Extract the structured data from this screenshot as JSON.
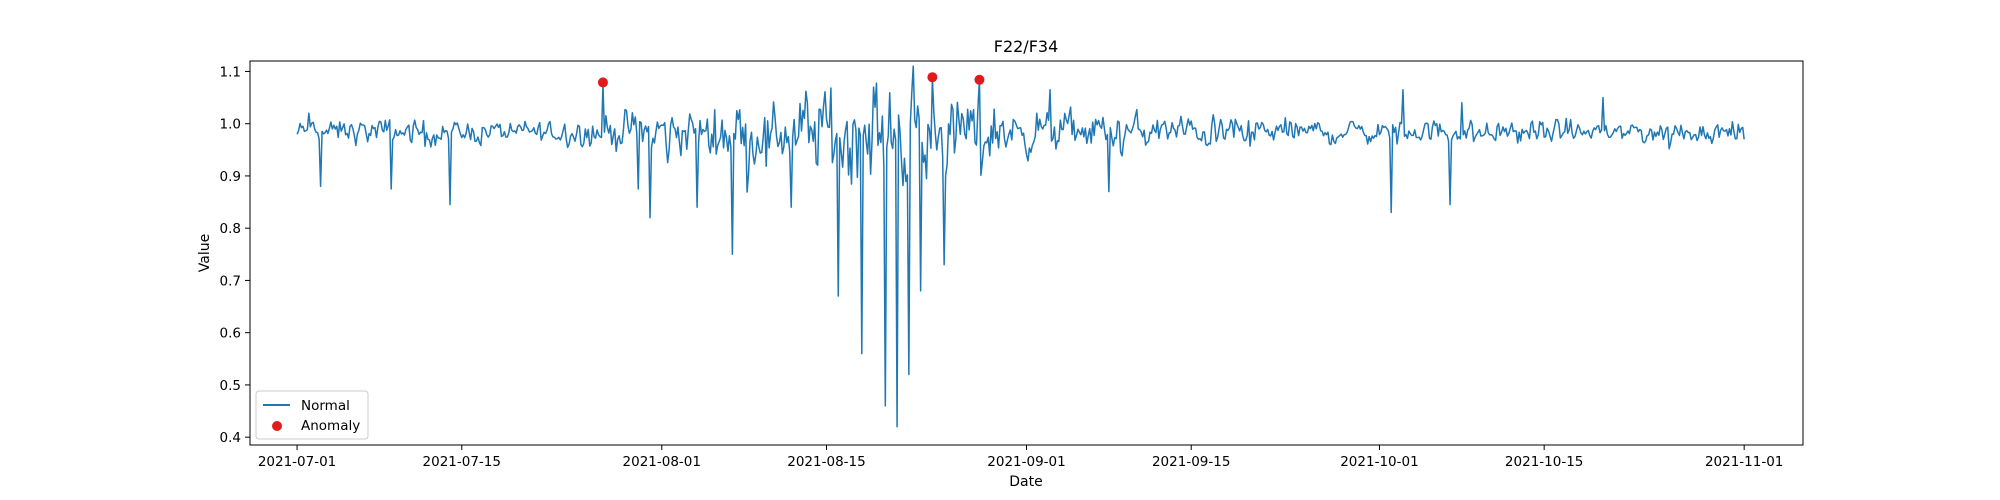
{
  "chart_data": {
    "type": "line",
    "title": "F22/F34",
    "xlabel": "Date",
    "ylabel": "Value",
    "x_range": [
      "2021-06-27",
      "2021-11-06"
    ],
    "ylim": [
      0.385,
      1.12
    ],
    "x_ticks": [
      "2021-07-01",
      "2021-07-15",
      "2021-08-01",
      "2021-08-15",
      "2021-09-01",
      "2021-09-15",
      "2021-10-01",
      "2021-10-15",
      "2021-11-01"
    ],
    "y_ticks": [
      "0.4",
      "0.5",
      "0.6",
      "0.7",
      "0.8",
      "0.9",
      "1.0",
      "1.1"
    ],
    "legend": {
      "position": "lower-left",
      "entries": [
        "Normal",
        "Anomaly"
      ]
    },
    "series": [
      {
        "name": "Normal",
        "kind": "line",
        "color": "#1f77b4",
        "start": "2021-07-01",
        "end": "2021-11-01",
        "samples_per_day": 8,
        "baseline": 0.985,
        "profile": [
          {
            "day": 0,
            "noise": 0.016
          },
          {
            "day": 8,
            "noise": 0.018
          },
          {
            "day": 20,
            "noise": 0.015
          },
          {
            "day": 27,
            "noise": 0.025
          },
          {
            "day": 33,
            "noise": 0.035
          },
          {
            "day": 40,
            "noise": 0.045
          },
          {
            "day": 46,
            "noise": 0.07
          },
          {
            "day": 55,
            "noise": 0.06
          },
          {
            "day": 62,
            "noise": 0.03
          },
          {
            "day": 75,
            "noise": 0.022
          },
          {
            "day": 90,
            "noise": 0.016
          },
          {
            "day": 123,
            "noise": 0.016
          }
        ],
        "key_points": [
          [
            "2021-07-01",
            0.98
          ],
          [
            "2021-07-02",
            1.02
          ],
          [
            "2021-07-03",
            0.88
          ],
          [
            "2021-07-04",
            0.99
          ],
          [
            "2021-07-09",
            0.875
          ],
          [
            "2021-07-14",
            0.845
          ],
          [
            "2021-07-25",
            0.995
          ],
          [
            "2021-07-27",
            1.075
          ],
          [
            "2021-07-28",
            0.99
          ],
          [
            "2021-07-30",
            0.875
          ],
          [
            "2021-07-31",
            0.82
          ],
          [
            "2021-08-04",
            0.84
          ],
          [
            "2021-08-07",
            0.75
          ],
          [
            "2021-08-12",
            0.84
          ],
          [
            "2021-08-16",
            0.67
          ],
          [
            "2021-08-18",
            0.56
          ],
          [
            "2021-08-19",
            1.07
          ],
          [
            "2021-08-20",
            0.46
          ],
          [
            "2021-08-21",
            0.42
          ],
          [
            "2021-08-22",
            0.52
          ],
          [
            "2021-08-23",
            0.68
          ],
          [
            "2021-08-24",
            1.088
          ],
          [
            "2021-08-25",
            0.73
          ],
          [
            "2021-08-28",
            1.085
          ],
          [
            "2021-09-03",
            1.065
          ],
          [
            "2021-09-08",
            0.87
          ],
          [
            "2021-10-02",
            0.83
          ],
          [
            "2021-10-03",
            1.065
          ],
          [
            "2021-10-07",
            0.845
          ],
          [
            "2021-10-08",
            1.04
          ],
          [
            "2021-10-20",
            1.05
          ],
          [
            "2021-11-01",
            0.97
          ]
        ]
      },
      {
        "name": "Anomaly",
        "kind": "scatter",
        "color": "#e31a1c",
        "points": [
          [
            "2021-07-27",
            1.079
          ],
          [
            "2021-08-24",
            1.089
          ],
          [
            "2021-08-28",
            1.084
          ]
        ]
      }
    ]
  }
}
